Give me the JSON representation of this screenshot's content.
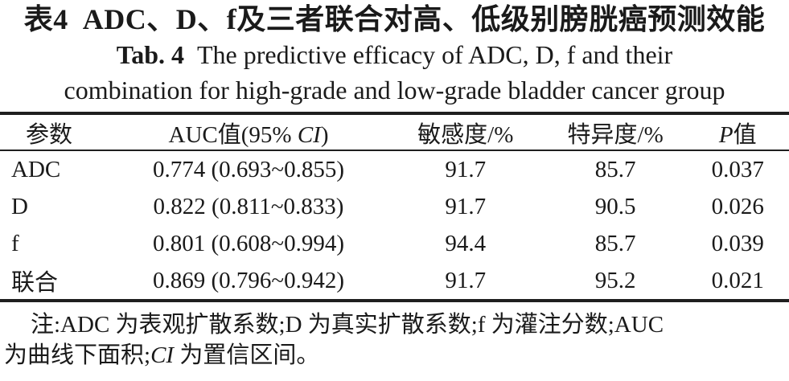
{
  "title": {
    "zh_label": "表4",
    "zh_text": "ADC、D、f及三者联合对高、低级别膀胱癌预测效能",
    "en_label": "Tab. 4",
    "en_line1": "The predictive efficacy of ADC, D, f and their",
    "en_line2": "combination for high-grade and low-grade bladder cancer group"
  },
  "table": {
    "headers": {
      "param": "参数",
      "auc_prefix": "AUC值(95% ",
      "auc_italic": "CI",
      "auc_suffix": ")",
      "sensitivity": "敏感度/%",
      "specificity": "特异度/%",
      "p_italic": "P",
      "p_suffix": "值"
    },
    "rows": [
      {
        "param": "ADC",
        "auc": "0.774 (0.693~0.855)",
        "sensitivity": "91.7",
        "specificity": "85.7",
        "p": "0.037"
      },
      {
        "param": "D",
        "auc": "0.822 (0.811~0.833)",
        "sensitivity": "91.7",
        "specificity": "90.5",
        "p": "0.026"
      },
      {
        "param": "f",
        "auc": "0.801 (0.608~0.994)",
        "sensitivity": "94.4",
        "specificity": "85.7",
        "p": "0.039"
      },
      {
        "param": "联合",
        "auc": "0.869 (0.796~0.942)",
        "sensitivity": "91.7",
        "specificity": "95.2",
        "p": "0.021"
      }
    ]
  },
  "note": {
    "line1": "注:ADC 为表观扩散系数;D 为真实扩散系数;f 为灌注分数;AUC",
    "line2_prefix": "为曲线下面积;",
    "line2_italic": "CI",
    "line2_suffix": " 为置信区间。"
  },
  "colors": {
    "text": "#1a1a1a",
    "rule": "#1f1f1f",
    "background": "#ffffff"
  }
}
